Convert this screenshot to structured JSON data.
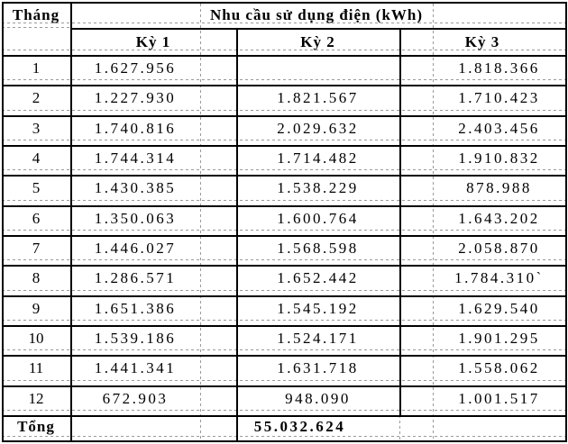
{
  "table": {
    "month_header": "Tháng",
    "title": "Nhu cầu sử dụng điện (kWh)",
    "period_headers": [
      "Kỳ 1",
      "Kỳ 2",
      "Kỳ 3"
    ],
    "rows": [
      {
        "month": "1",
        "ky1": "1.627.956",
        "ky2": "",
        "ky3": "1.818.366"
      },
      {
        "month": "2",
        "ky1": "1.227.930",
        "ky2": "1.821.567",
        "ky3": "1.710.423"
      },
      {
        "month": "3",
        "ky1": "1.740.816",
        "ky2": "2.029.632",
        "ky3": "2.403.456"
      },
      {
        "month": "4",
        "ky1": "1.744.314",
        "ky2": "1.714.482",
        "ky3": "1.910.832"
      },
      {
        "month": "5",
        "ky1": "1.430.385",
        "ky2": "1.538.229",
        "ky3": "878.988"
      },
      {
        "month": "6",
        "ky1": "1.350.063",
        "ky2": "1.600.764",
        "ky3": "1.643.202"
      },
      {
        "month": "7",
        "ky1": "1.446.027",
        "ky2": "1.568.598",
        "ky3": "2.058.870"
      },
      {
        "month": "8",
        "ky1": "1.286.571",
        "ky2": "1.652.442",
        "ky3": "1.784.310`"
      },
      {
        "month": "9",
        "ky1": "1.651.386",
        "ky2": "1.545.192",
        "ky3": "1.629.540"
      },
      {
        "month": "10",
        "ky1": "1.539.186",
        "ky2": "1.524.171",
        "ky3": "1.901.295"
      },
      {
        "month": "11",
        "ky1": "1.441.341",
        "ky2": "1.631.718",
        "ky3": "1.558.062"
      },
      {
        "month": "12",
        "ky1": "672.903",
        "ky2": "948.090",
        "ky3": "1.001.517"
      }
    ],
    "total_label": "Tổng",
    "total_value": "55.032.624"
  },
  "colors": {
    "border": "#000000",
    "gridline": "#9a9a9a",
    "text": "#000000",
    "background": "#ffffff"
  }
}
